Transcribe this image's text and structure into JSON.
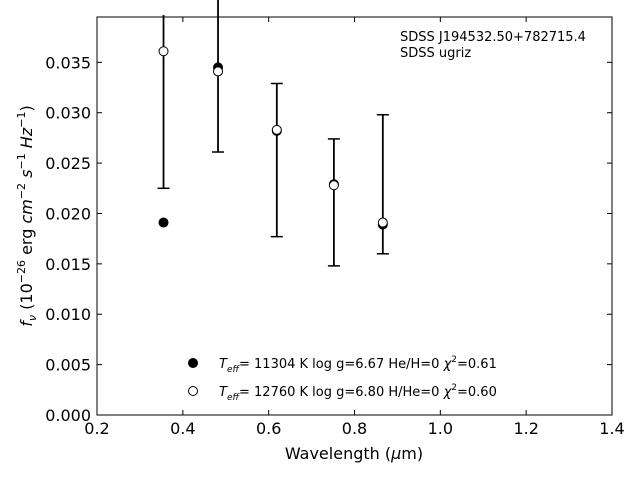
{
  "chart_data": {
    "type": "scatter",
    "title": "",
    "xlabel": "Wavelength (µm)",
    "ylabel": "fν (10⁻²⁶ erg cm⁻² s⁻¹ Hz⁻¹)",
    "xlim": [
      0.2,
      1.4
    ],
    "ylim": [
      0.0,
      0.0395
    ],
    "xticks": [
      0.2,
      0.4,
      0.6,
      0.8,
      1.0,
      1.2,
      1.4
    ],
    "xtick_labels": [
      "0.2",
      "0.4",
      "0.6",
      "0.8",
      "1.0",
      "1.2",
      "1.4"
    ],
    "yticks": [
      0.0,
      0.005,
      0.01,
      0.015,
      0.02,
      0.025,
      0.03,
      0.035
    ],
    "ytick_labels": [
      "0.000",
      "0.005",
      "0.010",
      "0.015",
      "0.020",
      "0.025",
      "0.030",
      "0.035"
    ],
    "grid": false,
    "legend_position": "bottom-center",
    "annotation": {
      "line1": "SDSS J194532.50+782715.4",
      "line2": "SDSS ugriz"
    },
    "observed": {
      "x": [
        0.355,
        0.482,
        0.619,
        0.752,
        0.866
      ],
      "y": [
        0.0311,
        0.0345,
        0.0253,
        0.0211,
        0.0229
      ],
      "yerr": [
        0.0086,
        0.0084,
        0.0076,
        0.0063,
        0.0069
      ]
    },
    "series": [
      {
        "name": "Teff= 11304 K  log g=6.67  He/H=0  χ²=0.61",
        "marker": "filled-circle",
        "x": [
          0.355,
          0.482,
          0.619,
          0.752,
          0.866
        ],
        "y": [
          0.0191,
          0.0345,
          0.0282,
          0.0229,
          0.0189
        ]
      },
      {
        "name": "Teff= 12760 K  log g=6.80  H/He=0  χ²=0.60",
        "marker": "open-circle",
        "x": [
          0.355,
          0.482,
          0.619,
          0.752,
          0.866
        ],
        "y": [
          0.0361,
          0.0341,
          0.0283,
          0.0228,
          0.0191
        ]
      }
    ]
  }
}
